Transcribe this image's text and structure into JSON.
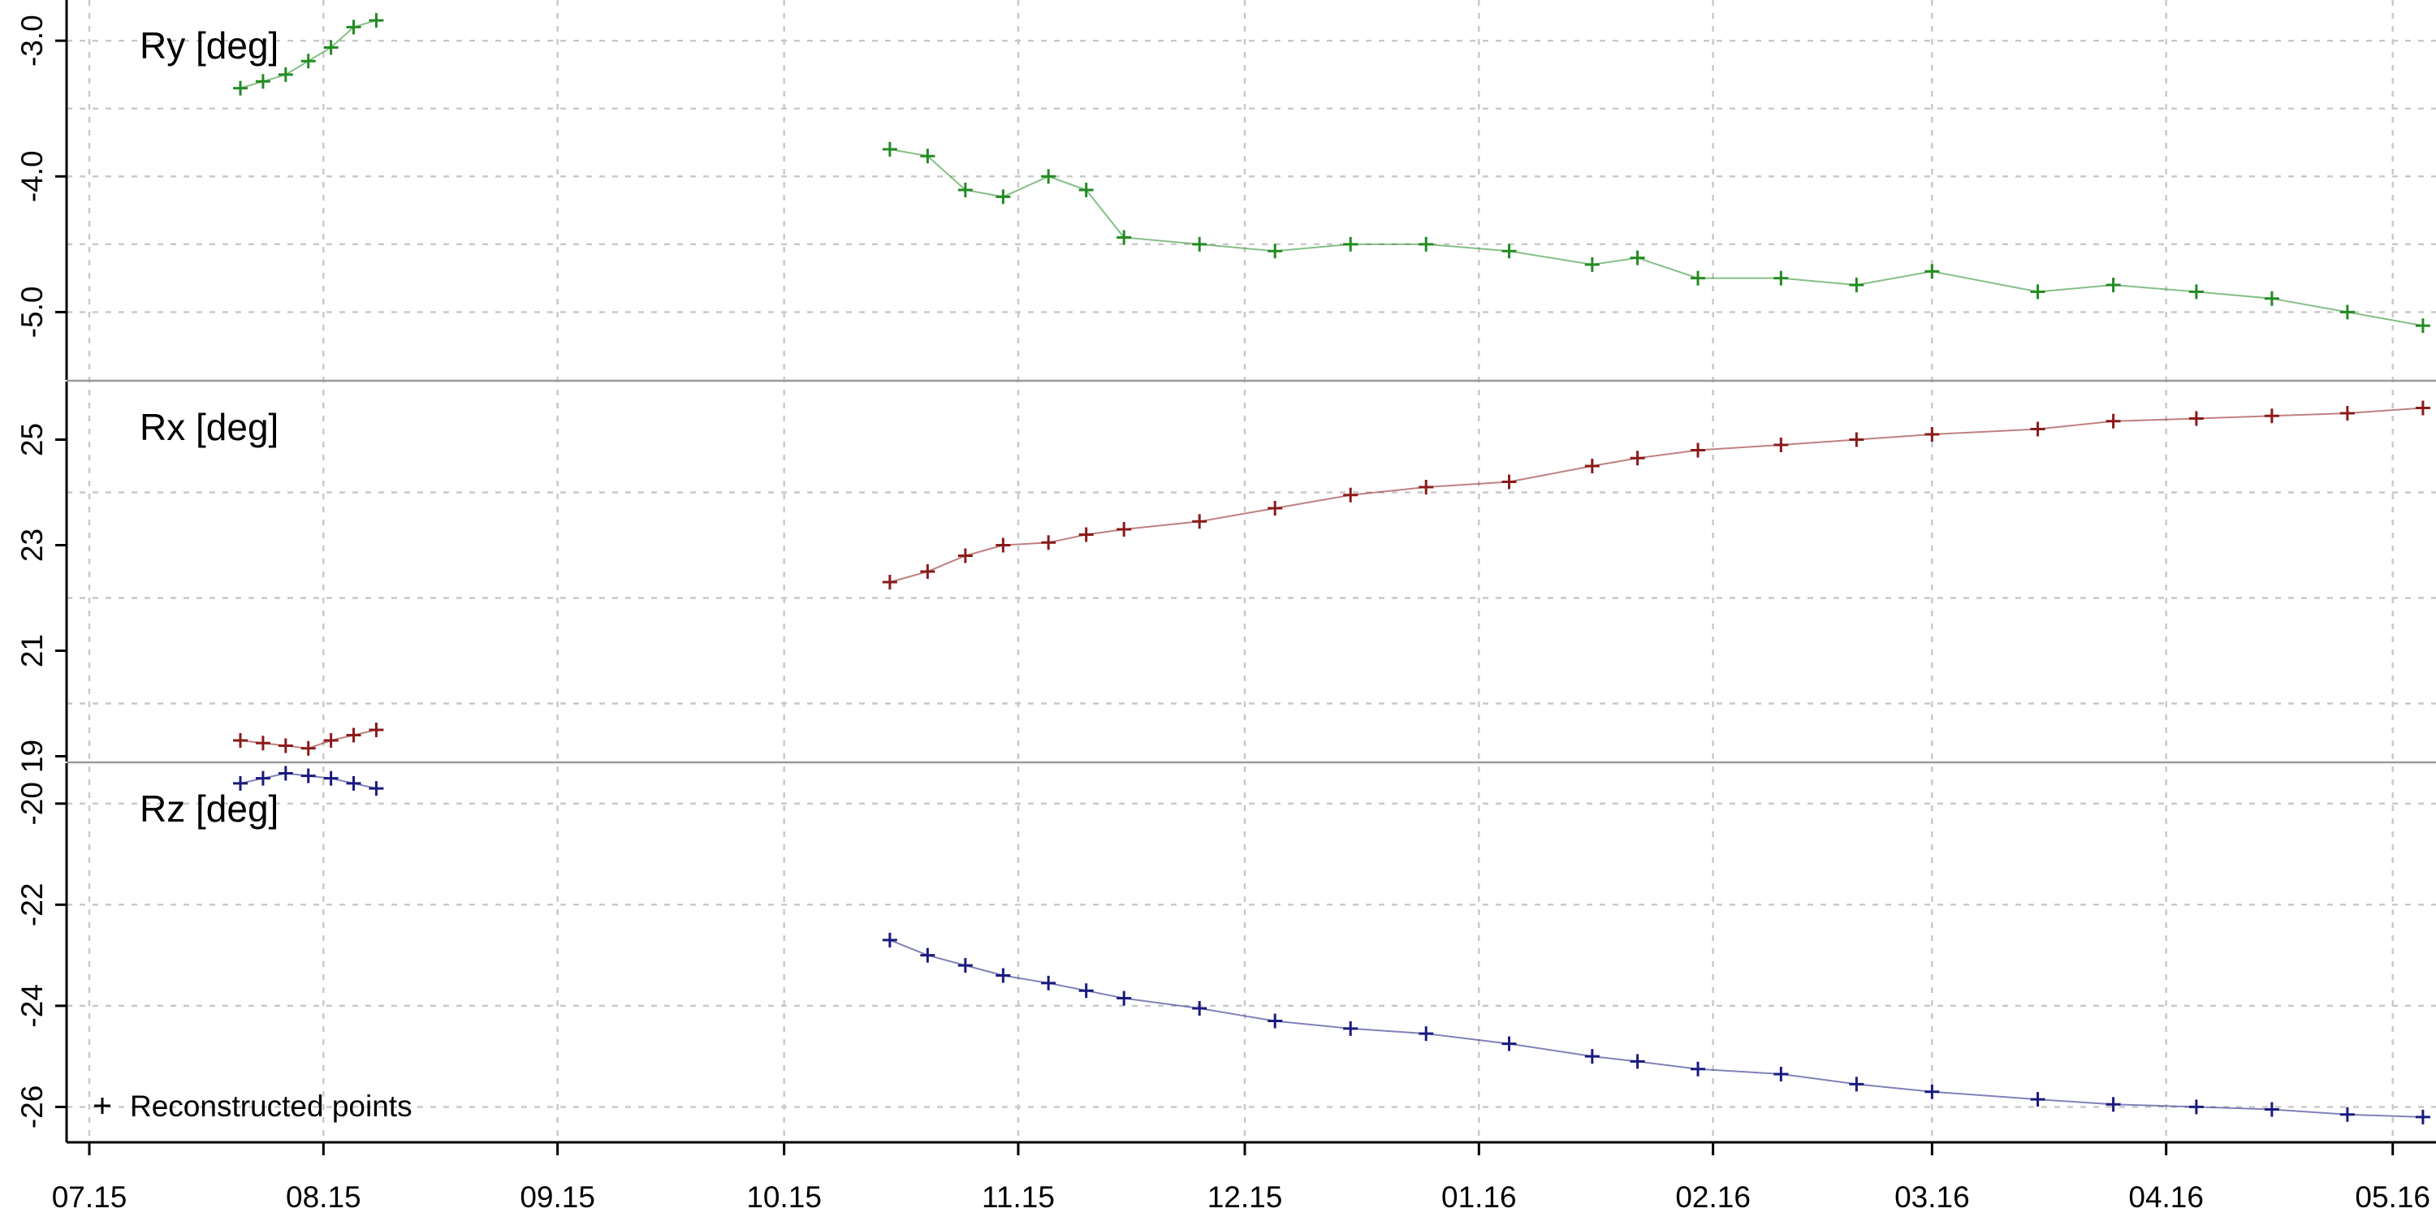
{
  "chart_data": {
    "type": "line",
    "x_ticks": [
      "07.15",
      "08.15",
      "09.15",
      "10.15",
      "11.15",
      "12.15",
      "01.16",
      "02.16",
      "03.16",
      "04.16",
      "05.16"
    ],
    "legend": {
      "marker": "+",
      "label": "Reconstructed points",
      "position": "bottom-left"
    },
    "grid": true,
    "panels": [
      {
        "id": "ry",
        "title": "Ry  [deg]",
        "color": "#228B22",
        "ylim": [
          -5.5,
          -2.7
        ],
        "yticks": [
          -3.0,
          -4.0,
          -5.0
        ],
        "ytick_labels": [
          "-3.0",
          "-4.0",
          "-5.0"
        ],
        "ygrid": [
          -3.0,
          -3.5,
          -4.0,
          -4.5,
          -5.0
        ],
        "series": [
          {
            "segment": 1,
            "x": [
              "07.21",
              "07.24",
              "07.27",
              "07.30",
              "08.02",
              "08.05",
              "08.08"
            ],
            "y": [
              -3.35,
              -3.3,
              -3.25,
              -3.15,
              -3.05,
              -2.9,
              -2.85
            ]
          },
          {
            "segment": 2,
            "x": [
              "10.15",
              "10.20",
              "10.25",
              "10.30",
              "11.05",
              "11.10",
              "11.15",
              "11.25",
              "12.05",
              "12.15",
              "12.25",
              "01.05",
              "01.16",
              "01.22",
              "01.30",
              "02.10",
              "02.20",
              "03.01",
              "03.15",
              "03.25",
              "04.05",
              "04.15",
              "04.25",
              "05.05"
            ],
            "y": [
              -3.8,
              -3.85,
              -4.1,
              -4.15,
              -4.0,
              -4.1,
              -4.45,
              -4.5,
              -4.55,
              -4.5,
              -4.5,
              -4.55,
              -4.65,
              -4.6,
              -4.75,
              -4.75,
              -4.8,
              -4.7,
              -4.85,
              -4.8,
              -4.85,
              -4.9,
              -5.0,
              -5.1
            ]
          }
        ]
      },
      {
        "id": "rx",
        "title": "Rx  [deg]",
        "color": "#8B1A1A",
        "ylim": [
          18.9,
          26.1
        ],
        "yticks": [
          19,
          21,
          23,
          25
        ],
        "ytick_labels": [
          "19",
          "21",
          "23",
          "25"
        ],
        "ygrid": [
          20,
          22,
          24
        ],
        "series": [
          {
            "segment": 1,
            "x": [
              "07.21",
              "07.24",
              "07.27",
              "07.30",
              "08.02",
              "08.05",
              "08.08"
            ],
            "y": [
              19.3,
              19.25,
              19.2,
              19.15,
              19.3,
              19.4,
              19.5
            ]
          },
          {
            "segment": 2,
            "x": [
              "10.15",
              "10.20",
              "10.25",
              "10.30",
              "11.05",
              "11.10",
              "11.15",
              "11.25",
              "12.05",
              "12.15",
              "12.25",
              "01.05",
              "01.16",
              "01.22",
              "01.30",
              "02.10",
              "02.20",
              "03.01",
              "03.15",
              "03.25",
              "04.05",
              "04.15",
              "04.25",
              "05.05"
            ],
            "y": [
              22.3,
              22.5,
              22.8,
              23.0,
              23.05,
              23.2,
              23.3,
              23.45,
              23.7,
              23.95,
              24.1,
              24.2,
              24.5,
              24.65,
              24.8,
              24.9,
              25.0,
              25.1,
              25.2,
              25.35,
              25.4,
              25.45,
              25.5,
              25.6
            ]
          }
        ]
      },
      {
        "id": "rz",
        "title": "Rz  [deg]",
        "color": "#1A1A80",
        "ylim": [
          -26.7,
          -19.2
        ],
        "yticks": [
          -20,
          -22,
          -24,
          -26
        ],
        "ytick_labels": [
          "-20",
          "-22",
          "-24",
          "-26"
        ],
        "ygrid": [
          -20,
          -22,
          -24,
          -26
        ],
        "series": [
          {
            "segment": 1,
            "x": [
              "07.21",
              "07.24",
              "07.27",
              "07.30",
              "08.02",
              "08.05",
              "08.08"
            ],
            "y": [
              -19.6,
              -19.5,
              -19.4,
              -19.45,
              -19.5,
              -19.6,
              -19.7
            ]
          },
          {
            "segment": 2,
            "x": [
              "10.15",
              "10.20",
              "10.25",
              "10.30",
              "11.05",
              "11.10",
              "11.15",
              "11.25",
              "12.05",
              "12.15",
              "12.25",
              "01.05",
              "01.16",
              "01.22",
              "01.30",
              "02.10",
              "02.20",
              "03.01",
              "03.15",
              "03.25",
              "04.05",
              "04.15",
              "04.25",
              "05.05"
            ],
            "y": [
              -22.7,
              -23.0,
              -23.2,
              -23.4,
              -23.55,
              -23.7,
              -23.85,
              -24.05,
              -24.3,
              -24.45,
              -24.55,
              -24.75,
              -25.0,
              -25.1,
              -25.25,
              -25.35,
              -25.55,
              -25.7,
              -25.85,
              -25.95,
              -26.0,
              -26.05,
              -26.15,
              -26.2
            ]
          }
        ]
      }
    ]
  }
}
